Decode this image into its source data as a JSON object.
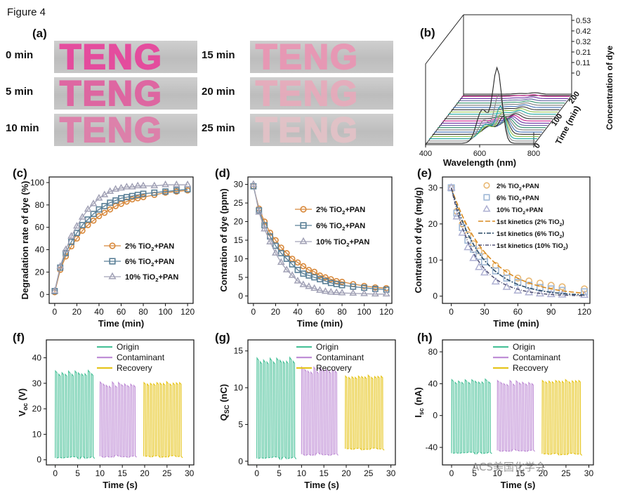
{
  "figure_title": "Figure 4",
  "watermark": "ACS美国化学会",
  "panel_a": {
    "label": "(a)",
    "word": "TENG",
    "left_times": [
      "0 min",
      "5 min",
      "10 min"
    ],
    "right_times": [
      "15 min",
      "20 min",
      "25 min"
    ],
    "colors": [
      "#e8409a",
      "#e15d9e",
      "#e07aa8",
      "#eb94b3",
      "#e8aabb",
      "#e4c2c7"
    ]
  },
  "chart_data": [
    {
      "id": "b",
      "label": "(b)",
      "type": "line",
      "xlabel": "Wavelength (nm)",
      "ylabel": "Time (min)",
      "zlabel": "Concentration of dye",
      "xticks": [
        400,
        600,
        800
      ],
      "yticks": [
        0,
        100,
        200
      ],
      "zticks": [
        "0.53",
        "0.42",
        "0.32",
        "0.21",
        "0.11",
        "0"
      ],
      "peak_wavelength": 665,
      "curves": [
        {
          "time": 0,
          "peak": 0.53
        },
        {
          "time": 10,
          "peak": 0.33
        },
        {
          "time": 20,
          "peak": 0.23
        },
        {
          "time": 30,
          "peak": 0.17
        },
        {
          "time": 40,
          "peak": 0.13
        },
        {
          "time": 50,
          "peak": 0.1
        },
        {
          "time": 60,
          "peak": 0.08
        },
        {
          "time": 70,
          "peak": 0.065
        },
        {
          "time": 80,
          "peak": 0.055
        },
        {
          "time": 90,
          "peak": 0.047
        },
        {
          "time": 100,
          "peak": 0.04
        },
        {
          "time": 110,
          "peak": 0.035
        },
        {
          "time": 120,
          "peak": 0.03
        },
        {
          "time": 130,
          "peak": 0.027
        },
        {
          "time": 140,
          "peak": 0.024
        },
        {
          "time": 150,
          "peak": 0.021
        },
        {
          "time": 160,
          "peak": 0.019
        },
        {
          "time": 170,
          "peak": 0.017
        },
        {
          "time": 180,
          "peak": 0.015
        },
        {
          "time": 190,
          "peak": 0.013
        },
        {
          "time": 200,
          "peak": 0.012
        },
        {
          "time": 210,
          "peak": 0.011
        },
        {
          "time": 220,
          "peak": 0.01
        }
      ],
      "colors": [
        "#222222",
        "#c81e8c",
        "#6a2fa3",
        "#5c5c9c",
        "#2f8f6b",
        "#7a7a7a",
        "#3f6fb5",
        "#2e2e2e",
        "#8fbf4a",
        "#1aa39b",
        "#888888"
      ]
    },
    {
      "id": "c",
      "label": "(c)",
      "type": "line",
      "xlabel": "Time (min)",
      "ylabel": "Degradation rate of dye (%)",
      "xlim": [
        -5,
        125
      ],
      "ylim": [
        -8,
        105
      ],
      "xticks": [
        0,
        20,
        40,
        60,
        80,
        100,
        120
      ],
      "yticks": [
        0,
        20,
        40,
        60,
        80,
        100
      ],
      "x": [
        0,
        5,
        10,
        15,
        20,
        25,
        30,
        35,
        40,
        45,
        50,
        55,
        60,
        65,
        70,
        75,
        80,
        90,
        100,
        110,
        120
      ],
      "series": [
        {
          "name": "2% TiO2+PAN",
          "name_main": "2% TiO",
          "name_sub": "2",
          "name_rest": "+PAN",
          "marker": "circle",
          "color": "#d8883a",
          "values": [
            2,
            22,
            34,
            43,
            50,
            57,
            62,
            66,
            70,
            73,
            76,
            79,
            81,
            83,
            85,
            86,
            87,
            89,
            91,
            92,
            93
          ]
        },
        {
          "name": "6% TiO2+PAN",
          "name_main": "6% TiO",
          "name_sub": "2",
          "name_rest": "+PAN",
          "marker": "square",
          "color": "#5a7f96",
          "values": [
            3,
            24,
            37,
            47,
            55,
            62,
            67,
            72,
            76,
            79,
            82,
            84,
            86,
            87,
            88,
            89,
            90,
            91,
            92,
            93,
            94
          ]
        },
        {
          "name": "10% TiO2+PAN",
          "name_main": "10% TiO",
          "name_sub": "2",
          "name_rest": "+PAN",
          "marker": "triangle",
          "color": "#a2a2b6",
          "values": [
            3,
            25,
            40,
            52,
            61,
            69,
            76,
            81,
            86,
            89,
            92,
            94,
            95,
            96,
            96,
            97,
            97,
            97,
            98,
            98,
            98
          ]
        }
      ]
    },
    {
      "id": "d",
      "label": "(d)",
      "type": "line",
      "xlabel": "Time (min)",
      "ylabel": "Contration of dye (ppm)",
      "xlim": [
        -5,
        125
      ],
      "ylim": [
        -2,
        32
      ],
      "xticks": [
        0,
        20,
        40,
        60,
        80,
        100,
        120
      ],
      "yticks": [
        0,
        5,
        10,
        15,
        20,
        25,
        30
      ],
      "x": [
        0,
        5,
        10,
        15,
        20,
        25,
        30,
        35,
        40,
        45,
        50,
        55,
        60,
        65,
        70,
        75,
        80,
        90,
        100,
        110,
        120
      ],
      "series": [
        {
          "name": "2% TiO2+PAN",
          "name_main": "2% TiO",
          "name_sub": "2",
          "name_rest": "+PAN",
          "marker": "circle",
          "color": "#d8883a",
          "values": [
            29.5,
            23.5,
            20,
            17,
            15,
            13,
            11.5,
            10,
            9,
            8,
            7,
            6.5,
            5.5,
            5,
            4.5,
            4,
            3.8,
            3.2,
            2.7,
            2.3,
            2.1
          ]
        },
        {
          "name": "6% TiO2+PAN",
          "name_main": "6% TiO",
          "name_sub": "2",
          "name_rest": "+PAN",
          "marker": "square",
          "color": "#5a7f96",
          "values": [
            29.5,
            23,
            19,
            16,
            13.5,
            11.5,
            10,
            8.5,
            7,
            6,
            5.5,
            5,
            4.5,
            4,
            3.5,
            3.2,
            2.9,
            2.5,
            2.2,
            1.9,
            1.7
          ]
        },
        {
          "name": "10% TiO2+PAN",
          "name_main": "10% TiO",
          "name_sub": "2",
          "name_rest": "+PAN",
          "marker": "triangle",
          "color": "#a2a2b6",
          "values": [
            30,
            22.5,
            18,
            14.5,
            11.5,
            9,
            7,
            5.5,
            4,
            3,
            2.5,
            2,
            1.5,
            1.2,
            1,
            0.9,
            0.8,
            0.7,
            0.6,
            0.5,
            0.5
          ]
        }
      ]
    },
    {
      "id": "e",
      "label": "(e)",
      "type": "scatter",
      "xlabel": "Time (min)",
      "ylabel": "Contration of dye (mg/g)",
      "xlim": [
        -8,
        125
      ],
      "ylim": [
        -2,
        33
      ],
      "xticks": [
        0,
        30,
        60,
        90,
        120
      ],
      "yticks": [
        0,
        10,
        20,
        30
      ],
      "x": [
        0,
        5,
        10,
        15,
        20,
        25,
        30,
        40,
        50,
        60,
        70,
        80,
        90,
        100,
        120
      ],
      "series": [
        {
          "name": "2% TiO2+PAN",
          "name_main": "2% TiO",
          "name_sub": "2",
          "name_rest": "+PAN",
          "marker": "circle",
          "color": "#e9b873",
          "values": [
            30,
            23.5,
            20,
            17,
            14.5,
            12.5,
            11,
            8.5,
            6.5,
            5,
            4.2,
            3.6,
            3,
            2.6,
            2
          ]
        },
        {
          "name": "6% TiO2+PAN",
          "name_main": "6% TiO",
          "name_sub": "2",
          "name_rest": "+PAN",
          "marker": "square",
          "color": "#9fb8d6",
          "values": [
            30,
            23,
            19,
            15.5,
            13,
            11,
            9.5,
            7,
            5,
            3.8,
            3,
            2.4,
            2,
            1.6,
            1.2
          ]
        },
        {
          "name": "10% TiO2+PAN",
          "name_main": "10% TiO",
          "name_sub": "2",
          "name_rest": "+PAN",
          "marker": "triangle",
          "color": "#aeb0d2",
          "values": [
            30,
            22,
            17.5,
            13.5,
            10.5,
            8,
            6.5,
            4,
            2.5,
            1.5,
            1,
            0.7,
            0.5,
            0.4,
            0.3
          ]
        }
      ],
      "fits": [
        {
          "name": "1st kinetics (2% TiO2)",
          "name_main": "1st kinetics (2% TiO",
          "name_sub": "2",
          "name_rest": ")",
          "k": 0.03,
          "color": "#d98a20",
          "dash": "7,3"
        },
        {
          "name": "1st kinetics (6% TiO2)",
          "name_main": "1st kinetics (6% TiO",
          "name_sub": "2",
          "name_rest": ")",
          "k": 0.037,
          "color": "#2a4a66",
          "dash": "6,2,2,2"
        },
        {
          "name": "1st kinetics (10% TiO2)",
          "name_main": "1st kinetics (10% TiO",
          "name_sub": "2",
          "name_rest": ")",
          "k": 0.046,
          "color": "#555577",
          "dash": "5,2,1,2"
        }
      ]
    },
    {
      "id": "f",
      "label": "(f)",
      "type": "line",
      "xlabel": "Time (s)",
      "ylabel_main": "V",
      "ylabel_sub": "oc",
      "ylabel_rest": " (V)",
      "xlim": [
        -2,
        31
      ],
      "ylim": [
        -2,
        47
      ],
      "xticks": [
        0,
        5,
        10,
        15,
        20,
        25,
        30
      ],
      "yticks": [
        0,
        10,
        20,
        30,
        40
      ],
      "series": [
        {
          "name": "Origin",
          "color": "#4cc29a",
          "t_start": 0.0,
          "t_end": 8.8,
          "low": 0.5,
          "high": 35.5,
          "cycles": 12
        },
        {
          "name": "Contaminant",
          "color": "#c08fd6",
          "t_start": 10.0,
          "t_end": 18.2,
          "low": 1.0,
          "high": 30.5,
          "cycles": 12
        },
        {
          "name": "Recovery",
          "color": "#e6c51d",
          "t_start": 19.8,
          "t_end": 28.5,
          "low": 0.8,
          "high": 31.5,
          "cycles": 12
        }
      ]
    },
    {
      "id": "g",
      "label": "(g)",
      "type": "line",
      "xlabel": "Time (s)",
      "ylabel_main": "Q",
      "ylabel_sub": "SC",
      "ylabel_rest": " (nC)",
      "xlim": [
        -2,
        31
      ],
      "ylim": [
        -0.5,
        16.5
      ],
      "xticks": [
        0,
        5,
        10,
        15,
        20,
        25,
        30
      ],
      "yticks": [
        0,
        5,
        10,
        15
      ],
      "series": [
        {
          "name": "Origin",
          "color": "#4cc29a",
          "t_start": 0.0,
          "t_end": 8.8,
          "low": 0.3,
          "high": 14.3,
          "cycles": 12
        },
        {
          "name": "Contaminant",
          "color": "#c08fd6",
          "t_start": 10.0,
          "t_end": 18.2,
          "low": 0.8,
          "high": 12.8,
          "cycles": 12
        },
        {
          "name": "Recovery",
          "color": "#e6c51d",
          "t_start": 19.8,
          "t_end": 28.5,
          "low": 1.5,
          "high": 12.0,
          "cycles": 12
        }
      ]
    },
    {
      "id": "h",
      "label": "(h)",
      "type": "line",
      "xlabel": "Time (s)",
      "ylabel_main": "I",
      "ylabel_sub": "sc",
      "ylabel_rest": " (nA)",
      "xlim": [
        -2,
        31
      ],
      "ylim": [
        -62,
        95
      ],
      "xticks": [
        0,
        5,
        10,
        15,
        20,
        25,
        30
      ],
      "yticks": [
        -40,
        0,
        40,
        80
      ],
      "series": [
        {
          "name": "Origin",
          "color": "#4cc29a",
          "t_start": 0.0,
          "t_end": 8.8,
          "low": -48,
          "high": 47,
          "cycles": 12
        },
        {
          "name": "Contaminant",
          "color": "#c08fd6",
          "t_start": 10.0,
          "t_end": 18.2,
          "low": -45,
          "high": 44,
          "cycles": 12
        },
        {
          "name": "Recovery",
          "color": "#e6c51d",
          "t_start": 19.8,
          "t_end": 28.5,
          "low": -50,
          "high": 48,
          "cycles": 12
        }
      ]
    }
  ]
}
